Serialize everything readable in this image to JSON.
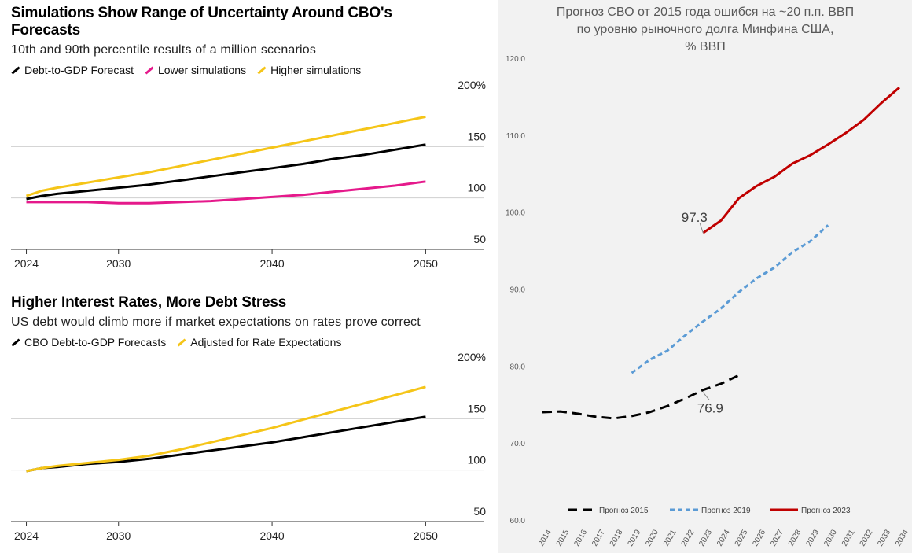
{
  "chart_data": [
    {
      "type": "line",
      "title": "Simulations Show Range of Uncertainty Around CBO's Forecasts",
      "subtitle": "10th and 90th percentile results of a million scenarios",
      "xlabel": "",
      "ylabel": "",
      "x_ticks": [
        "2024",
        "2030",
        "2040",
        "2050"
      ],
      "y_ticks": [
        "200%",
        "150",
        "100",
        "50"
      ],
      "ylim": [
        50,
        200
      ],
      "xlim": [
        2023,
        2053
      ],
      "grid": true,
      "legend_position": "top-left",
      "x": [
        2024,
        2025,
        2026,
        2028,
        2030,
        2032,
        2034,
        2036,
        2038,
        2040,
        2042,
        2044,
        2046,
        2048,
        2050
      ],
      "series": [
        {
          "name": "Debt-to-GDP Forecast",
          "color": "#000000",
          "values": [
            99,
            102,
            104,
            107,
            110,
            113,
            117,
            121,
            125,
            129,
            133,
            138,
            142,
            147,
            152
          ]
        },
        {
          "name": "Lower simulations",
          "color": "#e5198b",
          "values": [
            96,
            96,
            96,
            96,
            95,
            95,
            96,
            97,
            99,
            101,
            103,
            106,
            109,
            112,
            116
          ]
        },
        {
          "name": "Higher simulations",
          "color": "#f5c518",
          "values": [
            102,
            107,
            110,
            115,
            120,
            125,
            131,
            137,
            143,
            149,
            155,
            161,
            167,
            173,
            179
          ]
        }
      ]
    },
    {
      "type": "line",
      "title": "Higher Interest Rates, More Debt Stress",
      "subtitle": "US debt would climb more if market expectations on rates prove correct",
      "xlabel": "",
      "ylabel": "",
      "x_ticks": [
        "2024",
        "2030",
        "2040",
        "2050"
      ],
      "y_ticks": [
        "200%",
        "150",
        "100",
        "50"
      ],
      "ylim": [
        50,
        200
      ],
      "xlim": [
        2023,
        2053
      ],
      "grid": true,
      "legend_position": "top-left",
      "x": [
        2024,
        2025,
        2026,
        2028,
        2030,
        2032,
        2034,
        2036,
        2038,
        2040,
        2042,
        2044,
        2046,
        2048,
        2050
      ],
      "series": [
        {
          "name": "CBO Debt-to-GDP Forecasts",
          "color": "#000000",
          "values": [
            99,
            102,
            103,
            106,
            108,
            111,
            115,
            119,
            123,
            127,
            132,
            137,
            142,
            147,
            152
          ]
        },
        {
          "name": "Adjusted for Rate Expectations",
          "color": "#f5c518",
          "values": [
            99,
            102,
            104,
            107,
            110,
            114,
            120,
            127,
            134,
            141,
            149,
            157,
            165,
            173,
            181
          ]
        }
      ]
    },
    {
      "type": "line",
      "title": "Прогноз СВО от 2015 года ошибся на ~20 п.п. ВВП по уровню рыночного долга Минфина США, % ВВП",
      "xlabel": "",
      "ylabel": "",
      "x_ticks": [
        "2014",
        "2015",
        "2016",
        "2017",
        "2018",
        "2019",
        "2020",
        "2021",
        "2022",
        "2023",
        "2024",
        "2025",
        "2026",
        "2027",
        "2028",
        "2029",
        "2030",
        "2031",
        "2032",
        "2033",
        "2034"
      ],
      "y_ticks": [
        "120.0",
        "110.0",
        "100.0",
        "90.0",
        "80.0",
        "70.0",
        "60.0"
      ],
      "ylim": [
        60,
        120
      ],
      "grid": false,
      "legend_position": "bottom",
      "annotations": [
        {
          "text": "97.3",
          "series": "Прогноз 2023",
          "x": "2023",
          "y": 97.3
        },
        {
          "text": "76.9",
          "series": "Прогноз 2015",
          "x": "2023",
          "y": 76.9
        }
      ],
      "series": [
        {
          "name": "Прогноз 2015",
          "color": "#000000",
          "dash": "long",
          "x": [
            "2014",
            "2015",
            "2016",
            "2017",
            "2018",
            "2019",
            "2020",
            "2021",
            "2022",
            "2023",
            "2024",
            "2025"
          ],
          "values": [
            74.0,
            74.1,
            73.8,
            73.4,
            73.2,
            73.5,
            74.0,
            74.8,
            75.8,
            76.9,
            77.7,
            78.8
          ]
        },
        {
          "name": "Прогноз 2019",
          "color": "#5b9bd5",
          "dash": "short",
          "x": [
            "2019",
            "2020",
            "2021",
            "2022",
            "2023",
            "2024",
            "2025",
            "2026",
            "2027",
            "2028",
            "2029",
            "2030"
          ],
          "values": [
            79.1,
            80.8,
            82.0,
            84.0,
            85.8,
            87.5,
            89.6,
            91.4,
            92.8,
            94.8,
            96.2,
            98.3
          ]
        },
        {
          "name": "Прогноз 2023",
          "color": "#c00000",
          "dash": "solid",
          "x": [
            "2023",
            "2024",
            "2025",
            "2026",
            "2027",
            "2028",
            "2029",
            "2030",
            "2031",
            "2032",
            "2033",
            "2034"
          ],
          "values": [
            97.3,
            98.9,
            101.8,
            103.4,
            104.6,
            106.3,
            107.4,
            108.8,
            110.3,
            112.0,
            114.2,
            116.2
          ]
        }
      ]
    }
  ]
}
